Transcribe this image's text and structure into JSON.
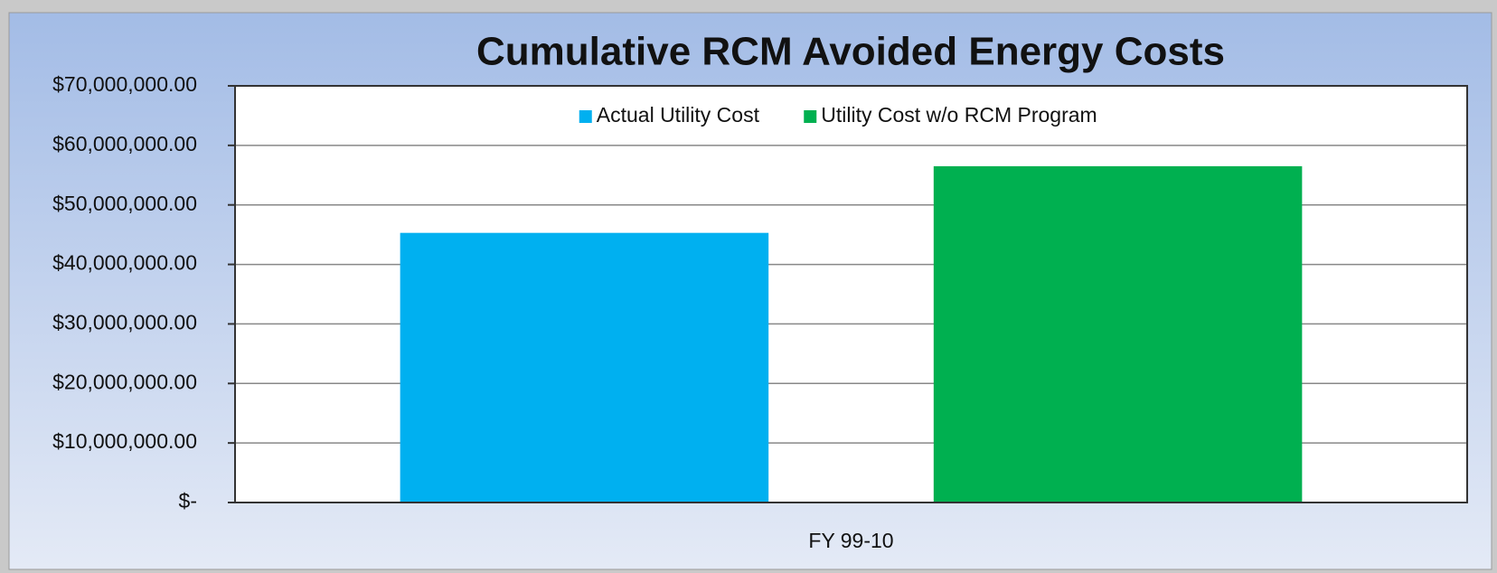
{
  "chart_data": {
    "type": "bar",
    "title": "Cumulative RCM Avoided Energy Costs",
    "categories": [
      "FY 99-10"
    ],
    "series": [
      {
        "name": "Actual Utility Cost",
        "color": "#00b0f0",
        "values": [
          45300000
        ]
      },
      {
        "name": "Utility Cost w/o RCM Program",
        "color": "#00b050",
        "values": [
          56500000
        ]
      }
    ],
    "ylim": [
      0,
      70000000
    ],
    "yticks": [
      {
        "value": 0,
        "label": "$-"
      },
      {
        "value": 10000000,
        "label": "$10,000,000.00"
      },
      {
        "value": 20000000,
        "label": "$20,000,000.00"
      },
      {
        "value": 30000000,
        "label": "$30,000,000.00"
      },
      {
        "value": 40000000,
        "label": "$40,000,000.00"
      },
      {
        "value": 50000000,
        "label": "$50,000,000.00"
      },
      {
        "value": 60000000,
        "label": "$60,000,000.00"
      },
      {
        "value": 70000000,
        "label": "$70,000,000.00"
      }
    ],
    "grid": true,
    "legend": "top"
  }
}
